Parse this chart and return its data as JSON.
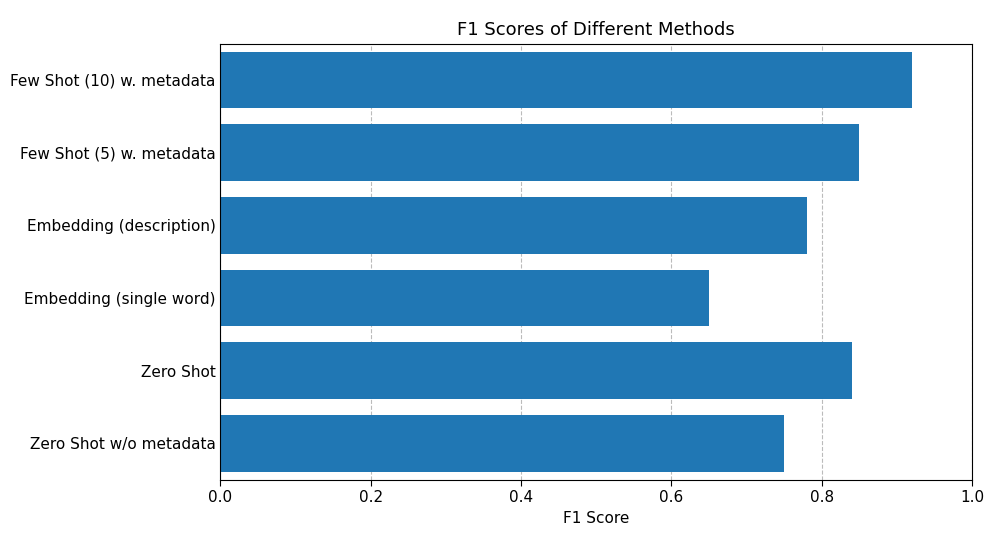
{
  "categories": [
    "Zero Shot w/o metadata",
    "Zero Shot",
    "Embedding (single word)",
    "Embedding (description)",
    "Few Shot (5) w. metadata",
    "Few Shot (10) w. metadata"
  ],
  "values": [
    0.75,
    0.84,
    0.65,
    0.78,
    0.85,
    0.92
  ],
  "bar_color": "#2077b4",
  "title": "F1 Scores of Different Methods",
  "xlabel": "F1 Score",
  "ylabel": "",
  "xlim": [
    0.0,
    1.0
  ],
  "xticks": [
    0.0,
    0.2,
    0.4,
    0.6,
    0.8,
    1.0
  ],
  "title_fontsize": 13,
  "label_fontsize": 11,
  "tick_fontsize": 11,
  "grid_color": "#bbbbbb",
  "grid_linestyle": "--",
  "background_color": "#ffffff",
  "bar_height": 0.78
}
